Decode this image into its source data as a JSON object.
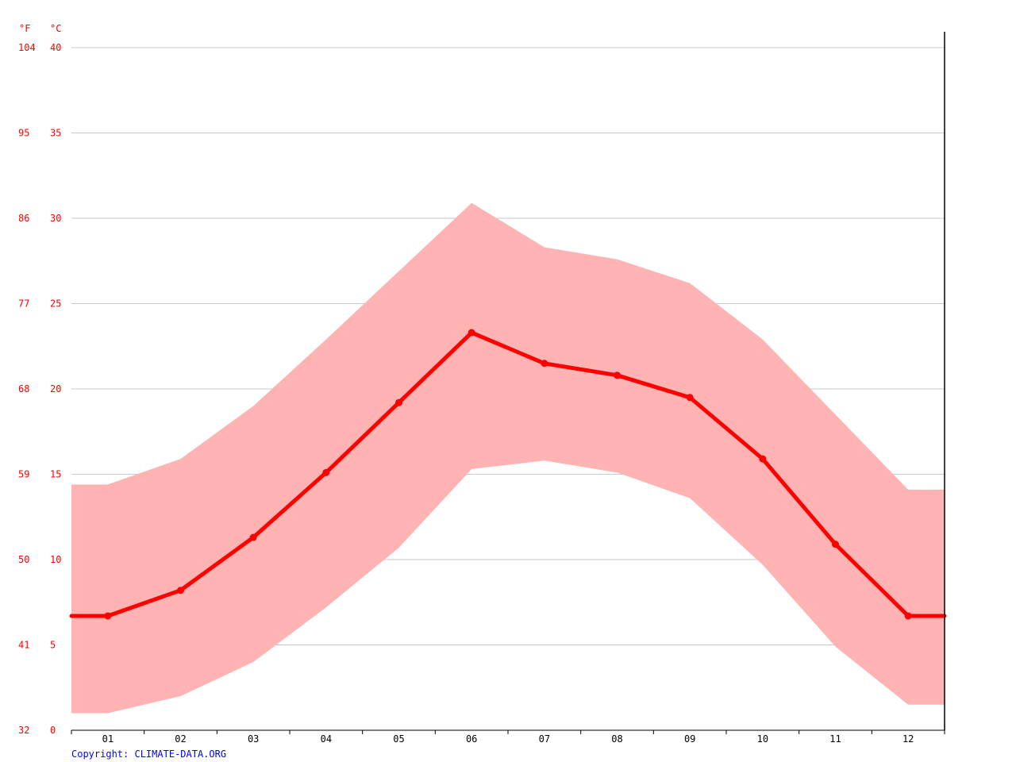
{
  "chart_data": {
    "type": "line",
    "unit_f": "°F",
    "unit_c": "°C",
    "x": [
      "01",
      "02",
      "03",
      "04",
      "05",
      "06",
      "07",
      "08",
      "09",
      "10",
      "11",
      "12"
    ],
    "ylim_c": [
      0,
      40
    ],
    "yticks_c": [
      "0",
      "5",
      "10",
      "15",
      "20",
      "25",
      "30",
      "35",
      "40"
    ],
    "yticks_f": [
      "32",
      "41",
      "50",
      "59",
      "68",
      "77",
      "86",
      "95",
      "104"
    ],
    "grid": true,
    "series": [
      {
        "role": "mean",
        "values": [
          6.7,
          8.2,
          11.3,
          15.1,
          19.2,
          23.3,
          21.5,
          20.8,
          19.5,
          15.9,
          10.9,
          6.7
        ]
      },
      {
        "role": "max",
        "values": [
          14.4,
          15.9,
          19.0,
          22.9,
          26.9,
          30.9,
          28.3,
          27.6,
          26.2,
          22.9,
          18.5,
          14.1
        ]
      },
      {
        "role": "min",
        "values": [
          1.0,
          2.0,
          4.0,
          7.2,
          10.7,
          15.3,
          15.8,
          15.1,
          13.6,
          9.7,
          4.9,
          1.5
        ]
      }
    ],
    "colors": {
      "line": "#ff0000",
      "band": "#ffb3b3",
      "axis_text": "#ff0000",
      "grid": "#c8c8c8"
    }
  },
  "footer": {
    "copyright": "Copyright: CLIMATE-DATA.ORG",
    "color": "#0000ff"
  }
}
